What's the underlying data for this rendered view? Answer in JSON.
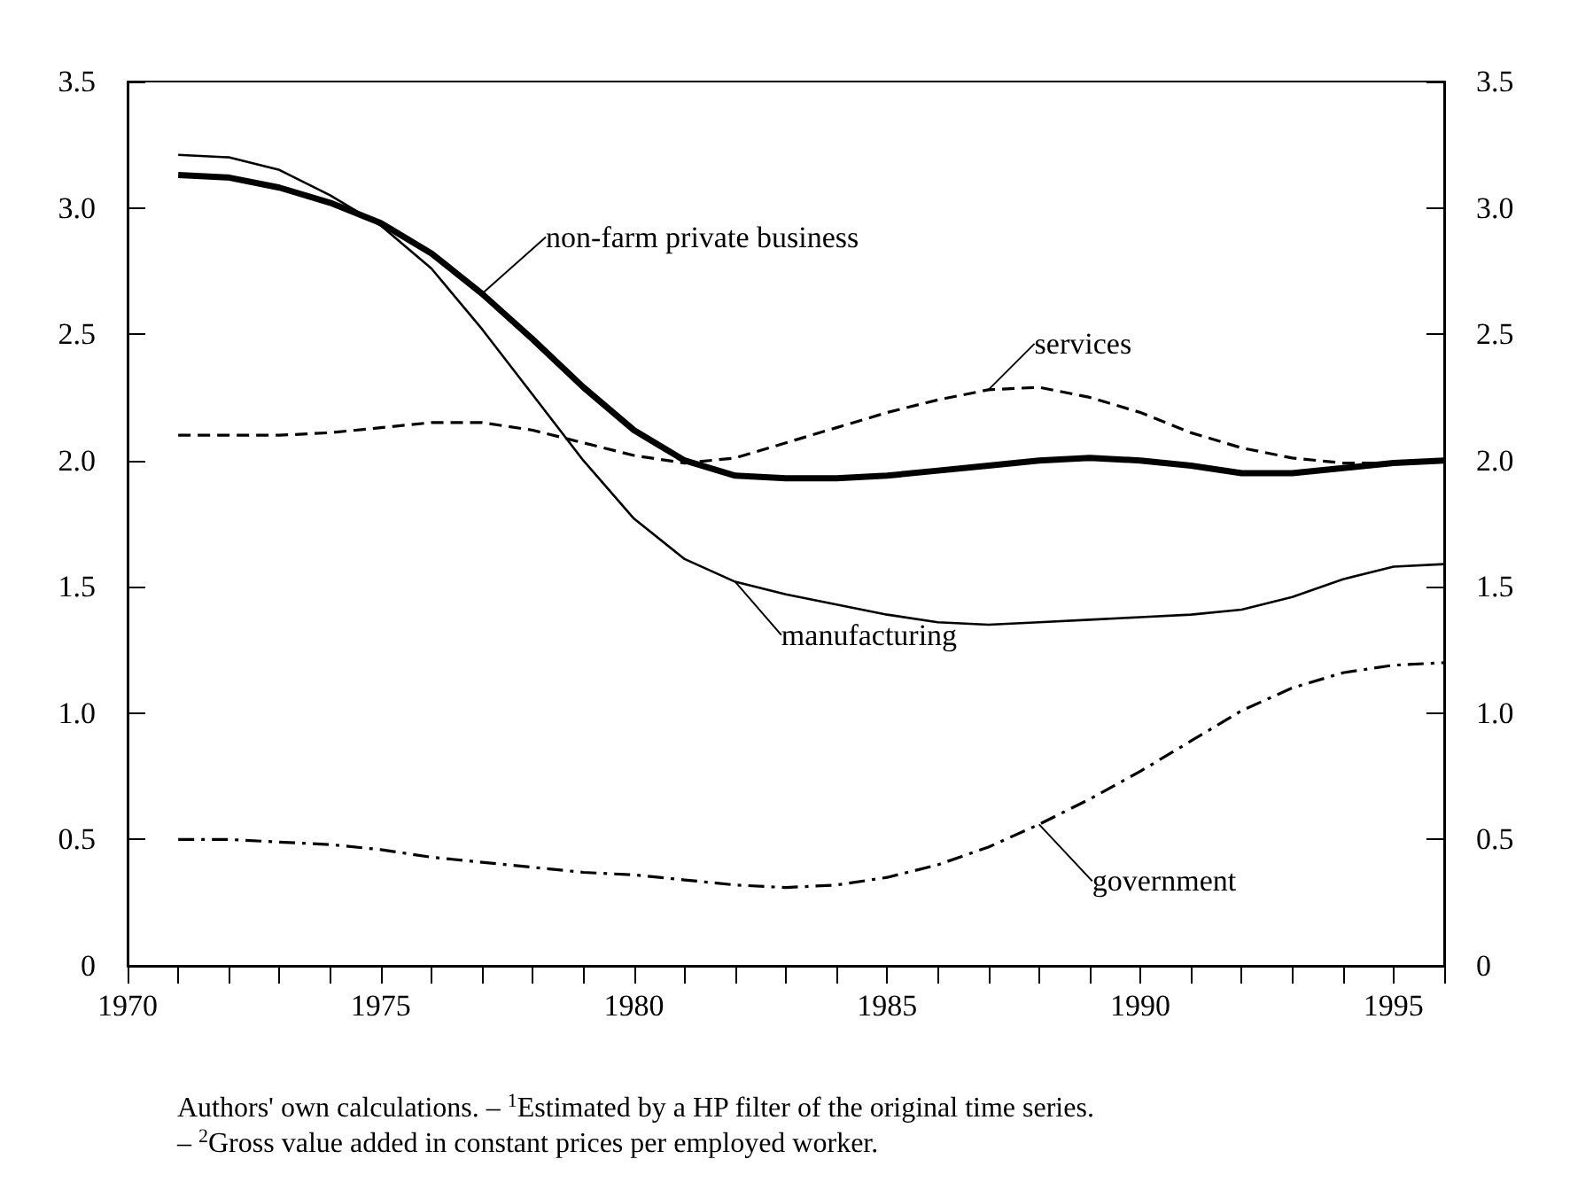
{
  "chart_data": {
    "type": "line",
    "x": [
      1971,
      1972,
      1973,
      1974,
      1975,
      1976,
      1977,
      1978,
      1979,
      1980,
      1981,
      1982,
      1983,
      1984,
      1985,
      1986,
      1987,
      1988,
      1989,
      1990,
      1991,
      1992,
      1993,
      1994,
      1995,
      1996
    ],
    "series": [
      {
        "name": "non-farm private business",
        "color": "#000000",
        "line_style": "solid",
        "values": [
          3.13,
          3.12,
          3.08,
          3.02,
          2.94,
          2.82,
          2.66,
          2.48,
          2.29,
          2.12,
          2.0,
          1.94,
          1.93,
          1.93,
          1.94,
          1.96,
          1.98,
          2.0,
          2.01,
          2.0,
          1.98,
          1.95,
          1.95,
          1.97,
          1.99,
          2.0
        ]
      },
      {
        "name": "manufacturing",
        "color": "#000000",
        "line_style": "solid",
        "values": [
          3.21,
          3.2,
          3.15,
          3.05,
          2.93,
          2.76,
          2.52,
          2.26,
          2.0,
          1.77,
          1.61,
          1.52,
          1.47,
          1.43,
          1.39,
          1.36,
          1.35,
          1.36,
          1.37,
          1.38,
          1.39,
          1.41,
          1.46,
          1.53,
          1.58,
          1.59
        ]
      },
      {
        "name": "services",
        "color": "#000000",
        "line_style": "dashed",
        "values": [
          2.1,
          2.1,
          2.1,
          2.11,
          2.13,
          2.15,
          2.15,
          2.12,
          2.07,
          2.02,
          1.99,
          2.01,
          2.07,
          2.13,
          2.19,
          2.24,
          2.28,
          2.29,
          2.25,
          2.19,
          2.11,
          2.05,
          2.01,
          1.99,
          1.99,
          2.0
        ]
      },
      {
        "name": "government",
        "color": "#000000",
        "line_style": "dashdot",
        "values": [
          0.5,
          0.5,
          0.49,
          0.48,
          0.46,
          0.43,
          0.41,
          0.39,
          0.37,
          0.36,
          0.34,
          0.32,
          0.31,
          0.32,
          0.35,
          0.4,
          0.47,
          0.56,
          0.66,
          0.77,
          0.89,
          1.01,
          1.1,
          1.16,
          1.19,
          1.2
        ]
      }
    ],
    "xlim": [
      1970,
      1996
    ],
    "xticks": [
      1970,
      {
        "value": 1971,
        "label": null
      },
      {
        "value": 1972,
        "label": null
      },
      {
        "value": 1973,
        "label": null
      },
      {
        "value": 1974,
        "label": null
      },
      1975,
      {
        "value": 1976,
        "label": null
      },
      {
        "value": 1977,
        "label": null
      },
      {
        "value": 1978,
        "label": null
      },
      {
        "value": 1979,
        "label": null
      },
      1980,
      {
        "value": 1981,
        "label": null
      },
      {
        "value": 1982,
        "label": null
      },
      {
        "value": 1983,
        "label": null
      },
      {
        "value": 1984,
        "label": null
      },
      1985,
      {
        "value": 1986,
        "label": null
      },
      {
        "value": 1987,
        "label": null
      },
      {
        "value": 1988,
        "label": null
      },
      {
        "value": 1989,
        "label": null
      },
      1990,
      {
        "value": 1991,
        "label": null
      },
      {
        "value": 1992,
        "label": null
      },
      {
        "value": 1993,
        "label": null
      },
      {
        "value": 1994,
        "label": null
      },
      1995,
      {
        "value": 1996,
        "label": null
      }
    ],
    "ylim": [
      0,
      3.5
    ],
    "yticks": [
      0,
      0.5,
      {
        "value": 1,
        "label": "1.0"
      },
      1.5,
      {
        "value": 2,
        "label": "2.0"
      },
      2.5,
      {
        "value": 3,
        "label": "3.0"
      },
      3.5
    ],
    "y2lim": [
      0,
      3.5
    ],
    "y2ticks": [
      0,
      0.5,
      {
        "value": 1,
        "label": "1.0"
      },
      1.5,
      {
        "value": 2,
        "label": "2.0"
      },
      2.5,
      {
        "value": 3,
        "label": "3.0"
      },
      3.5
    ],
    "grid": false,
    "legend": false,
    "marker": "none",
    "annotations": [
      "Authors' own calculations. – $^{1}$Estimated by a HP filter of the original time series.",
      "– $^{2}$Gross value added in constant prices per employed worker."
    ]
  }
}
